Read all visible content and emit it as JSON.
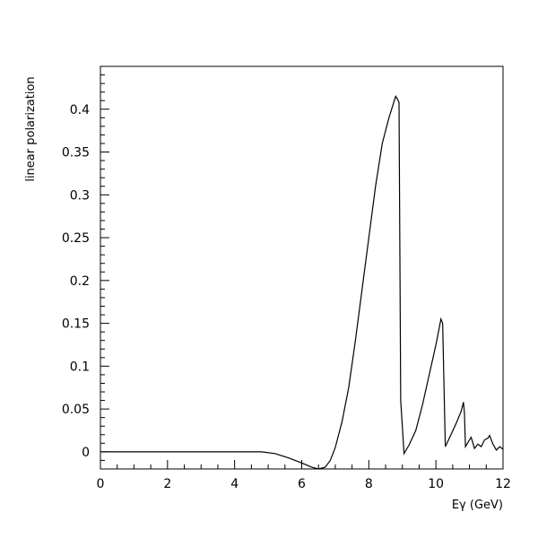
{
  "chart_data": {
    "type": "line",
    "title": "",
    "xlabel": "Eγ (GeV)",
    "ylabel": "linear polarization",
    "xlim": [
      0,
      12
    ],
    "ylim": [
      -0.02,
      0.45
    ],
    "x_ticks": [
      0,
      2,
      4,
      6,
      8,
      10,
      12
    ],
    "y_ticks": [
      0,
      0.05,
      0.1,
      0.15,
      0.2,
      0.25,
      0.3,
      0.35,
      0.4
    ],
    "x_tick_labels": [
      "0",
      "2",
      "4",
      "6",
      "8",
      "10",
      "12"
    ],
    "y_tick_labels": [
      "0",
      "0.05",
      "0.1",
      "0.15",
      "0.2",
      "0.25",
      "0.3",
      "0.35",
      "0.4"
    ],
    "grid": false,
    "series": [
      {
        "x": [
          0,
          4.8,
          5.2,
          5.6,
          6.0,
          6.3,
          6.5,
          6.7,
          6.85,
          7.0,
          7.2,
          7.4,
          7.6,
          7.8,
          8.0,
          8.2,
          8.4,
          8.6,
          8.8,
          8.85,
          8.9,
          8.95,
          9.05,
          9.2,
          9.4,
          9.6,
          9.8,
          10.0,
          10.15,
          10.2,
          10.28,
          10.4,
          10.6,
          10.75,
          10.82,
          10.85,
          10.88,
          11.0,
          11.05,
          11.15,
          11.25,
          11.35,
          11.45,
          11.55,
          11.6,
          11.7,
          11.8,
          11.9,
          12.0
        ],
        "y": [
          0,
          0,
          -0.002,
          -0.007,
          -0.013,
          -0.018,
          -0.02,
          -0.018,
          -0.01,
          0.005,
          0.035,
          0.075,
          0.13,
          0.19,
          0.25,
          0.31,
          0.36,
          0.39,
          0.415,
          0.412,
          0.408,
          0.06,
          -0.002,
          0.008,
          0.025,
          0.055,
          0.09,
          0.125,
          0.155,
          0.15,
          0.006,
          0.016,
          0.033,
          0.047,
          0.058,
          0.045,
          0.006,
          0.014,
          0.017,
          0.004,
          0.009,
          0.006,
          0.014,
          0.016,
          0.019,
          0.009,
          0.002,
          0.006,
          0.003
        ]
      }
    ]
  }
}
